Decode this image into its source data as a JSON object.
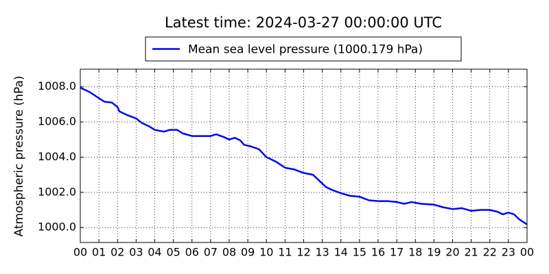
{
  "chart_data": {
    "type": "line",
    "title": "Latest time: 2024-03-27 00:00:00 UTC",
    "ylabel": "Atmospheric pressure (hPa)",
    "legend_position": "top",
    "grid": true,
    "x": [
      0,
      0.5,
      1,
      1.3,
      1.7,
      2,
      2.1,
      2.5,
      3,
      3.3,
      3.7,
      4,
      4.5,
      4.8,
      5.2,
      5.5,
      6,
      6.5,
      7,
      7.3,
      7.7,
      8,
      8.3,
      8.6,
      8.8,
      9.2,
      9.6,
      10,
      10.5,
      11,
      11.5,
      12,
      12.5,
      12.8,
      13.2,
      13.5,
      14,
      14.5,
      15,
      15.5,
      16,
      16.5,
      17,
      17.4,
      17.8,
      18.3,
      19,
      19.5,
      20,
      20.5,
      21,
      21.5,
      22,
      22.4,
      22.7,
      23,
      23.3,
      23.6,
      24
    ],
    "series": [
      {
        "name": "Mean sea level pressure (1000.179 hPa)",
        "color": "#0000ff",
        "values": [
          1007.95,
          1007.7,
          1007.35,
          1007.15,
          1007.1,
          1006.85,
          1006.6,
          1006.4,
          1006.2,
          1005.95,
          1005.75,
          1005.55,
          1005.45,
          1005.55,
          1005.55,
          1005.35,
          1005.2,
          1005.2,
          1005.2,
          1005.3,
          1005.15,
          1005.0,
          1005.1,
          1004.95,
          1004.7,
          1004.6,
          1004.45,
          1004.0,
          1003.75,
          1003.4,
          1003.3,
          1003.1,
          1003.0,
          1002.7,
          1002.3,
          1002.15,
          1001.95,
          1001.8,
          1001.75,
          1001.55,
          1001.5,
          1001.5,
          1001.45,
          1001.35,
          1001.45,
          1001.35,
          1001.3,
          1001.15,
          1001.05,
          1001.1,
          1000.95,
          1001.0,
          1001.0,
          1000.9,
          1000.75,
          1000.85,
          1000.75,
          1000.45,
          1000.18
        ]
      }
    ],
    "xlim": [
      0,
      24
    ],
    "xticks": [
      {
        "value": 0,
        "label": "00"
      },
      {
        "value": 1,
        "label": "01"
      },
      {
        "value": 2,
        "label": "02"
      },
      {
        "value": 3,
        "label": "03"
      },
      {
        "value": 4,
        "label": "04"
      },
      {
        "value": 5,
        "label": "05"
      },
      {
        "value": 6,
        "label": "06"
      },
      {
        "value": 7,
        "label": "07"
      },
      {
        "value": 8,
        "label": "08"
      },
      {
        "value": 9,
        "label": "09"
      },
      {
        "value": 10,
        "label": "10"
      },
      {
        "value": 11,
        "label": "11"
      },
      {
        "value": 12,
        "label": "12"
      },
      {
        "value": 13,
        "label": "13"
      },
      {
        "value": 14,
        "label": "14"
      },
      {
        "value": 15,
        "label": "15"
      },
      {
        "value": 16,
        "label": "16"
      },
      {
        "value": 17,
        "label": "17"
      },
      {
        "value": 18,
        "label": "18"
      },
      {
        "value": 19,
        "label": "19"
      },
      {
        "value": 20,
        "label": "20"
      },
      {
        "value": 21,
        "label": "21"
      },
      {
        "value": 22,
        "label": "22"
      },
      {
        "value": 23,
        "label": "23"
      },
      {
        "value": 24,
        "label": "00"
      }
    ],
    "ylim": [
      999.15,
      1009.0
    ],
    "yticks": [
      {
        "value": 1000,
        "label": "1000.0"
      },
      {
        "value": 1002,
        "label": "1002.0"
      },
      {
        "value": 1004,
        "label": "1004.0"
      },
      {
        "value": 1006,
        "label": "1006.0"
      },
      {
        "value": 1008,
        "label": "1008.0"
      }
    ]
  }
}
